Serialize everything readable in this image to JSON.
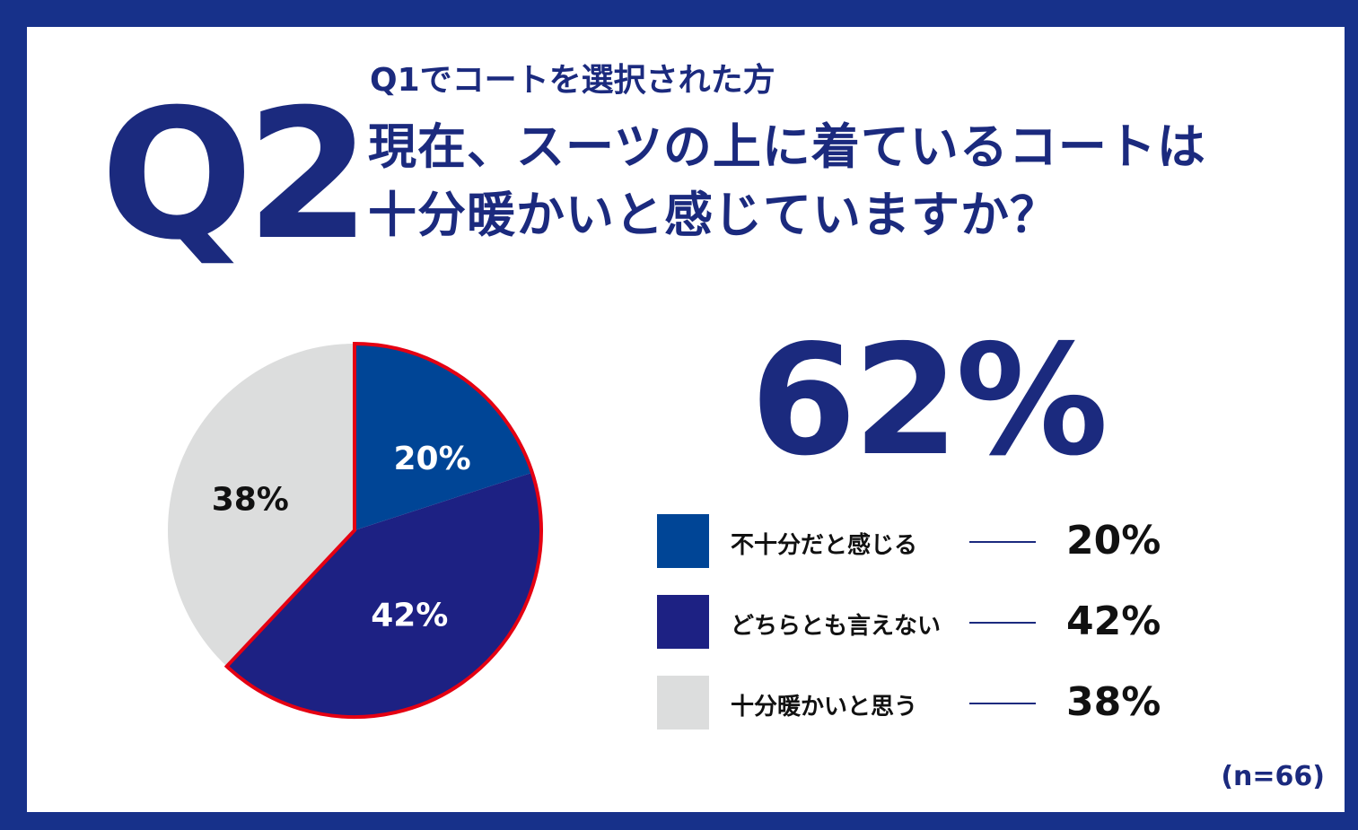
{
  "header": {
    "q_number": "Q2",
    "subtitle": "Q1でコートを選択された方",
    "question_line1": "現在、スーツの上に着ているコートは",
    "question_line2": "十分暖かいと感じていますか？"
  },
  "headline_value": "62%",
  "sample_size": "(n=66)",
  "chart_data": {
    "type": "pie",
    "categories": [
      "不十分だと感じる",
      "どちらとも言えない",
      "十分暖かいと思う"
    ],
    "values": [
      20,
      42,
      38
    ],
    "labels": [
      "20%",
      "42%",
      "38%"
    ],
    "colors": [
      "#004596",
      "#1d2183",
      "#dcdddd"
    ],
    "highlight_color": "#e50012",
    "highlight_slices": [
      0,
      1
    ],
    "start_angle_deg": 0,
    "direction": "clockwise",
    "legend_position": "right"
  },
  "legend": [
    {
      "label": "不十分だと感じる",
      "value": "20%",
      "color": "#004596"
    },
    {
      "label": "どちらとも言えない",
      "value": "42%",
      "color": "#1d2183"
    },
    {
      "label": "十分暖かいと思う",
      "value": "38%",
      "color": "#dcdddd"
    }
  ]
}
